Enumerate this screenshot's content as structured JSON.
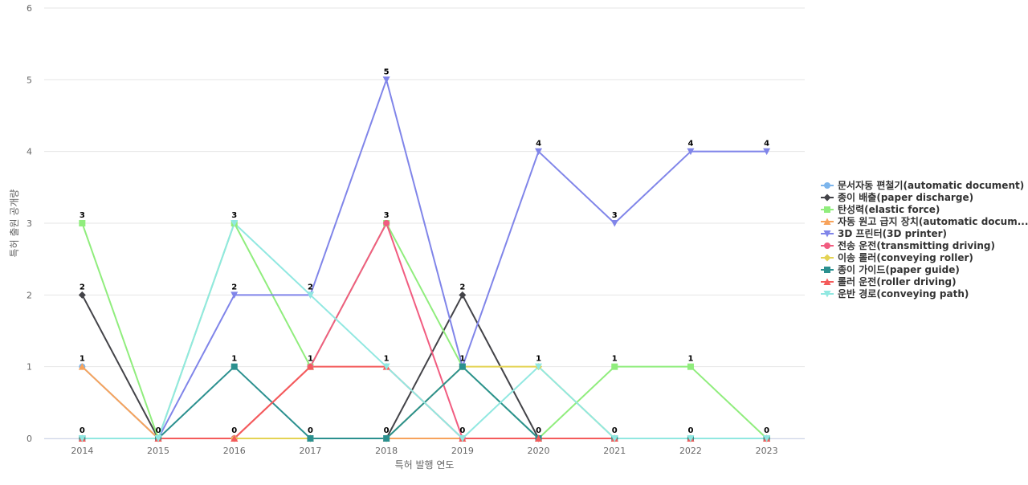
{
  "chart_data": {
    "type": "line",
    "title": "",
    "xlabel": "특허 발행 연도",
    "ylabel": "특허 출원 공개량",
    "ylim": [
      0,
      6
    ],
    "yticks": [
      0,
      1,
      2,
      3,
      4,
      5,
      6
    ],
    "grid": true,
    "legend_position": "right",
    "categories": [
      "2014",
      "2015",
      "2016",
      "2017",
      "2018",
      "2019",
      "2020",
      "2021",
      "2022",
      "2023"
    ],
    "series": [
      {
        "name": "문서자동 편철기(automatic document)",
        "color": "#7cb5ec",
        "marker": "circle",
        "values": [
          1,
          0,
          0,
          0,
          0,
          0,
          0,
          0,
          0,
          0
        ]
      },
      {
        "name": "종이 배출(paper discharge)",
        "color": "#434348",
        "marker": "diamond",
        "values": [
          2,
          0,
          0,
          0,
          0,
          2,
          0,
          0,
          0,
          0
        ]
      },
      {
        "name": "탄성력(elastic force)",
        "color": "#90ed7d",
        "marker": "square",
        "values": [
          3,
          0,
          3,
          1,
          3,
          1,
          0,
          1,
          1,
          0
        ]
      },
      {
        "name": "자동 원고 급지 장치(automatic docum...",
        "color": "#f7a35c",
        "marker": "triangle",
        "values": [
          1,
          0,
          0,
          0,
          0,
          0,
          0,
          0,
          0,
          0
        ]
      },
      {
        "name": "3D 프린터(3D printer)",
        "color": "#8085e9",
        "marker": "triangle-down",
        "values": [
          0,
          0,
          2,
          2,
          5,
          1,
          4,
          3,
          4,
          4
        ]
      },
      {
        "name": "전송 운전(transmitting driving)",
        "color": "#f15c80",
        "marker": "circle",
        "values": [
          0,
          0,
          0,
          1,
          3,
          0,
          0,
          0,
          0,
          0
        ]
      },
      {
        "name": "이송 롤러(conveying roller)",
        "color": "#e4d354",
        "marker": "diamond",
        "values": [
          0,
          0,
          0,
          0,
          0,
          1,
          1,
          0,
          0,
          0
        ]
      },
      {
        "name": "종이 가이드(paper guide)",
        "color": "#2b908f",
        "marker": "square",
        "values": [
          0,
          0,
          1,
          0,
          0,
          1,
          0,
          0,
          0,
          0
        ]
      },
      {
        "name": "롤러 운전(roller driving)",
        "color": "#f45b5b",
        "marker": "triangle",
        "values": [
          0,
          0,
          0,
          1,
          1,
          0,
          0,
          0,
          0,
          0
        ]
      },
      {
        "name": "운반 경로(conveying path)",
        "color": "#91e8e1",
        "marker": "triangle-down",
        "values": [
          0,
          0,
          3,
          2,
          1,
          0,
          1,
          0,
          0,
          0
        ]
      }
    ],
    "data_labels": [
      {
        "category": "2014",
        "values": [
          "3",
          "2",
          "1",
          "0"
        ]
      },
      {
        "category": "2015",
        "values": [
          "0"
        ]
      },
      {
        "category": "2016",
        "values": [
          "3",
          "2",
          "1",
          "0"
        ]
      },
      {
        "category": "2017",
        "values": [
          "2",
          "1",
          "0"
        ]
      },
      {
        "category": "2018",
        "values": [
          "5",
          "3",
          "1",
          "0"
        ]
      },
      {
        "category": "2019",
        "values": [
          "2",
          "1",
          "0"
        ]
      },
      {
        "category": "2020",
        "values": [
          "4",
          "1",
          "0"
        ]
      },
      {
        "category": "2021",
        "values": [
          "3",
          "1",
          "0"
        ]
      },
      {
        "category": "2022",
        "values": [
          "4",
          "1",
          "0"
        ]
      },
      {
        "category": "2023",
        "values": [
          "4",
          "0"
        ]
      }
    ]
  }
}
